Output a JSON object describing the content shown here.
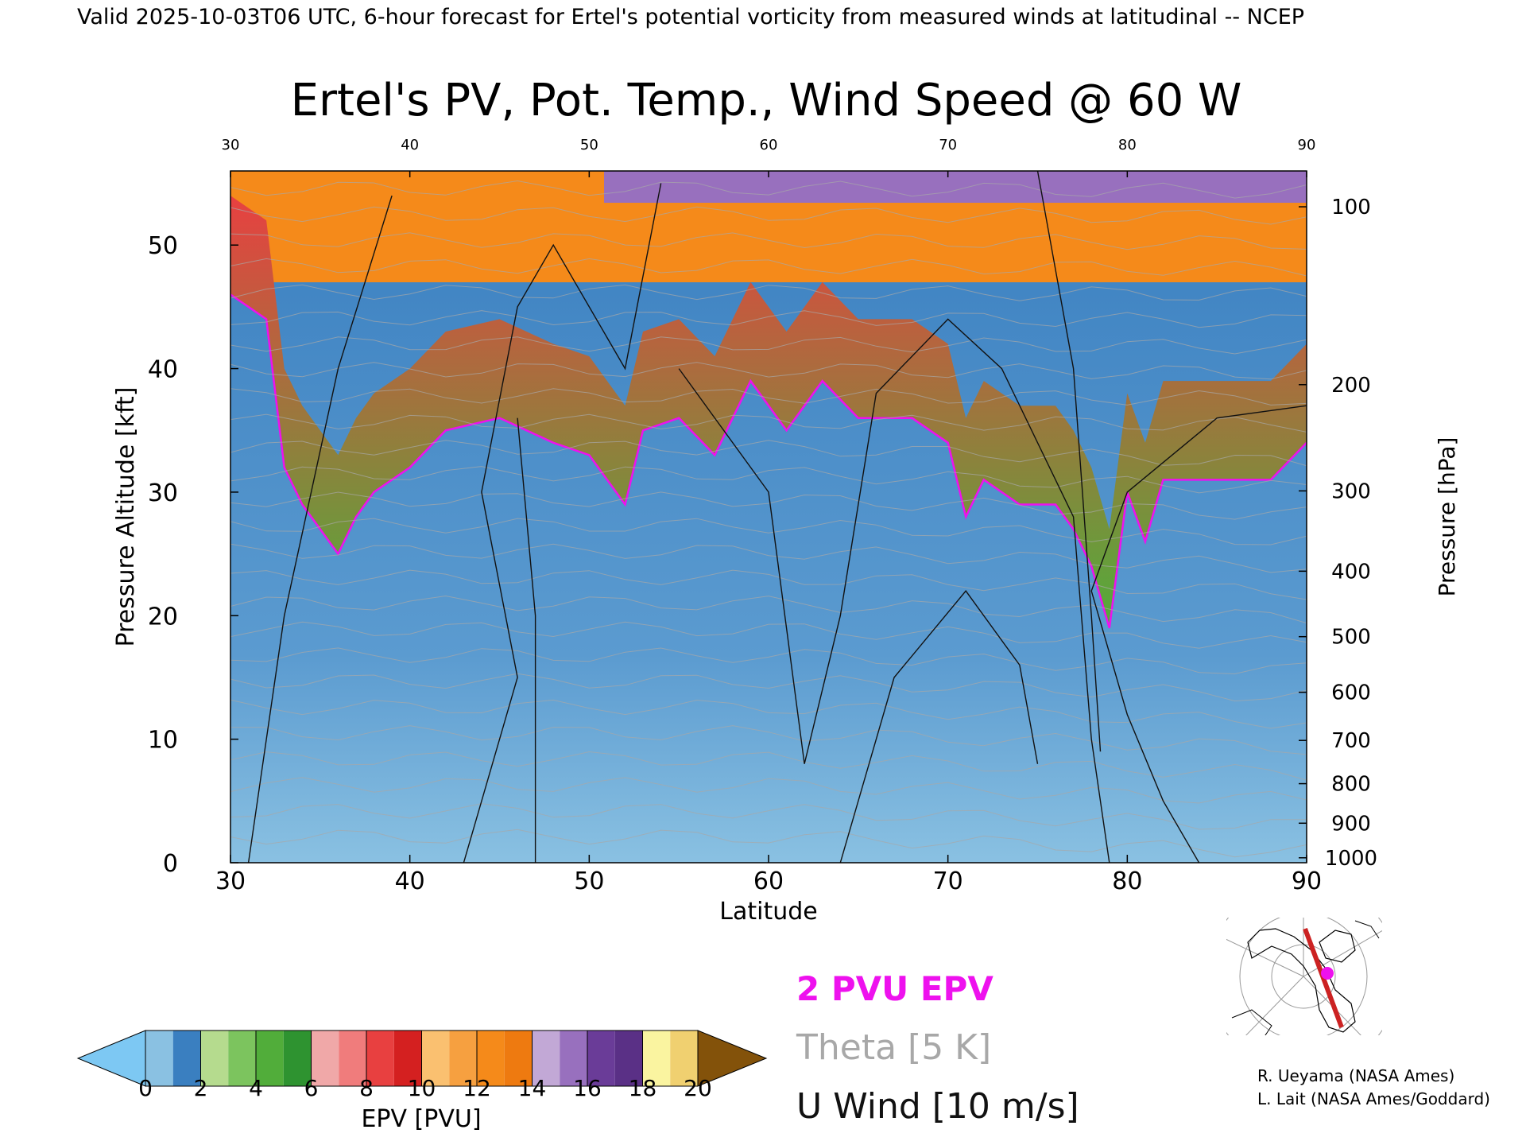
{
  "header": {
    "banner": "Valid 2025-10-03T06 UTC, 6-hour forecast for Ertel's potential vorticity from measured winds at latitudinal -- NCEP"
  },
  "chart_data": {
    "type": "heatmap",
    "title": "Ertel's PV, Pot. Temp., Wind Speed @ 60 W",
    "xlabel": "Latitude",
    "ylabel_left": "Pressure Altitude [kft]",
    "ylabel_right": "Pressure [hPa]",
    "xlim": [
      30,
      90
    ],
    "ylim": [
      0,
      56
    ],
    "x_ticks": [
      "30",
      "40",
      "50",
      "60",
      "70",
      "80",
      "90"
    ],
    "top_ticks": [
      "30",
      "40",
      "50",
      "60",
      "70",
      "80",
      "90"
    ],
    "y_ticks": [
      "0",
      "10",
      "20",
      "30",
      "40",
      "50"
    ],
    "y_tick_values": [
      0,
      10,
      20,
      30,
      40,
      50
    ],
    "pressure_ticks": [
      {
        "label": "100",
        "kft": 53.1
      },
      {
        "label": "200",
        "kft": 38.7
      },
      {
        "label": "300",
        "kft": 30.1
      },
      {
        "label": "400",
        "kft": 23.6
      },
      {
        "label": "500",
        "kft": 18.3
      },
      {
        "label": "600",
        "kft": 13.8
      },
      {
        "label": "700",
        "kft": 9.9
      },
      {
        "label": "800",
        "kft": 6.4
      },
      {
        "label": "900",
        "kft": 3.2
      },
      {
        "label": "1000",
        "kft": 0.4
      }
    ],
    "tropopause_2pvu_kft": [
      {
        "lat": 30,
        "kft": 46
      },
      {
        "lat": 32,
        "kft": 44
      },
      {
        "lat": 33,
        "kft": 32
      },
      {
        "lat": 34,
        "kft": 29
      },
      {
        "lat": 35,
        "kft": 27
      },
      {
        "lat": 36,
        "kft": 25
      },
      {
        "lat": 37,
        "kft": 28
      },
      {
        "lat": 38,
        "kft": 30
      },
      {
        "lat": 40,
        "kft": 32
      },
      {
        "lat": 42,
        "kft": 35
      },
      {
        "lat": 45,
        "kft": 36
      },
      {
        "lat": 48,
        "kft": 34
      },
      {
        "lat": 50,
        "kft": 33
      },
      {
        "lat": 52,
        "kft": 29
      },
      {
        "lat": 53,
        "kft": 35
      },
      {
        "lat": 55,
        "kft": 36
      },
      {
        "lat": 57,
        "kft": 33
      },
      {
        "lat": 59,
        "kft": 39
      },
      {
        "lat": 61,
        "kft": 35
      },
      {
        "lat": 63,
        "kft": 39
      },
      {
        "lat": 65,
        "kft": 36
      },
      {
        "lat": 68,
        "kft": 36
      },
      {
        "lat": 70,
        "kft": 34
      },
      {
        "lat": 71,
        "kft": 28
      },
      {
        "lat": 72,
        "kft": 31
      },
      {
        "lat": 74,
        "kft": 29
      },
      {
        "lat": 76,
        "kft": 29
      },
      {
        "lat": 77,
        "kft": 27
      },
      {
        "lat": 78,
        "kft": 24
      },
      {
        "lat": 79,
        "kft": 19
      },
      {
        "lat": 80,
        "kft": 30
      },
      {
        "lat": 81,
        "kft": 26
      },
      {
        "lat": 82,
        "kft": 31
      },
      {
        "lat": 85,
        "kft": 31
      },
      {
        "lat": 88,
        "kft": 31
      },
      {
        "lat": 90,
        "kft": 34
      }
    ],
    "colorbar": {
      "label": "EPV [PVU]",
      "tick_labels": [
        "0",
        "2",
        "4",
        "6",
        "8",
        "10",
        "12",
        "14",
        "16",
        "18",
        "20"
      ],
      "under_color": "#7dc8f3",
      "over_color": "#83520a",
      "bins": [
        {
          "from": 0,
          "to": 1,
          "color": "#8ac1e2"
        },
        {
          "from": 1,
          "to": 2,
          "color": "#3a7fc0"
        },
        {
          "from": 2,
          "to": 3,
          "color": "#b5db8e"
        },
        {
          "from": 3,
          "to": 4,
          "color": "#7cc45e"
        },
        {
          "from": 4,
          "to": 5,
          "color": "#51ad3a"
        },
        {
          "from": 5,
          "to": 6,
          "color": "#2e9330"
        },
        {
          "from": 6,
          "to": 7,
          "color": "#f0a8a8"
        },
        {
          "from": 7,
          "to": 8,
          "color": "#f07c7c"
        },
        {
          "from": 8,
          "to": 9,
          "color": "#e84040"
        },
        {
          "from": 9,
          "to": 10,
          "color": "#d42020"
        },
        {
          "from": 10,
          "to": 11,
          "color": "#fac070"
        },
        {
          "from": 11,
          "to": 12,
          "color": "#f6a040"
        },
        {
          "from": 12,
          "to": 13,
          "color": "#f58a1a"
        },
        {
          "from": 13,
          "to": 14,
          "color": "#ee7a10"
        },
        {
          "from": 14,
          "to": 15,
          "color": "#c2a8d6"
        },
        {
          "from": 15,
          "to": 16,
          "color": "#9870be"
        },
        {
          "from": 16,
          "to": 17,
          "color": "#6a3c98"
        },
        {
          "from": 17,
          "to": 18,
          "color": "#5a3086"
        },
        {
          "from": 18,
          "to": 19,
          "color": "#faf4a0"
        },
        {
          "from": 19,
          "to": 20,
          "color": "#f0d070"
        }
      ]
    },
    "legend": [
      {
        "label": "2 PVU EPV",
        "color": "#ee11ee"
      },
      {
        "label": "Theta [5 K]",
        "color": "#a8a8a8"
      },
      {
        "label": "U Wind [10 m/s]",
        "color": "#111111"
      }
    ]
  },
  "credits": [
    "R. Ueyama (NASA Ames)",
    "L. Lait (NASA Ames/Goddard)"
  ],
  "colors": {
    "epv_contour": "#ee11ee",
    "theta_contour": "#a8a8a8",
    "wind_contour": "#111111",
    "map_track": "#cc2222",
    "map_point": "#ee11ee"
  },
  "icons": {
    "locator_map": "north-polar-stereographic-map-icon"
  }
}
